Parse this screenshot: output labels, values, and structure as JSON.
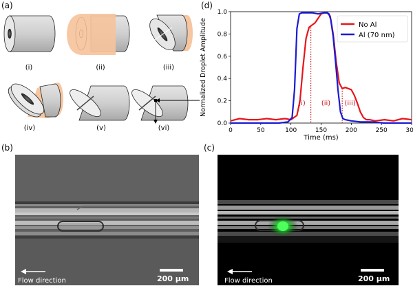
{
  "figure": {
    "panel_a": {
      "label": "(a)",
      "sublabels": [
        "(i)",
        "(ii)",
        "(iii)",
        "(iv)",
        "(v)",
        "(vi)"
      ]
    },
    "panel_b": {
      "label": "(b)",
      "flow_text": "Flow direction",
      "scale_text": "200 μm"
    },
    "panel_c": {
      "label": "(c)",
      "flow_text": "Flow direction",
      "scale_text": "200 μm"
    },
    "panel_d": {
      "label": "(d)"
    }
  },
  "colors": {
    "red": "#e8151b",
    "blue": "#1a1ad6",
    "cone": "#f6c39c",
    "cylinder": "#d6d6d6",
    "green": "#39ff4a"
  },
  "chart_data": {
    "type": "line",
    "xlabel": "Time (ms)",
    "ylabel": "Normalized Droplet Amplitude",
    "xlim": [
      0,
      300
    ],
    "ylim": [
      0,
      1.0
    ],
    "xticks": [
      0,
      50,
      100,
      150,
      200,
      250,
      300
    ],
    "yticks": [
      0.0,
      0.2,
      0.4,
      0.6,
      0.8,
      1.0
    ],
    "grid": false,
    "legend_position": "top-right",
    "series": [
      {
        "name": "No Al",
        "color": "#e8151b",
        "x": [
          0,
          15,
          30,
          45,
          60,
          75,
          90,
          100,
          110,
          115,
          120,
          125,
          130,
          135,
          140,
          145,
          150,
          155,
          160,
          165,
          170,
          175,
          180,
          185,
          190,
          195,
          200,
          205,
          210,
          215,
          220,
          225,
          230,
          240,
          255,
          270,
          285,
          300
        ],
        "y": [
          0.02,
          0.04,
          0.03,
          0.03,
          0.04,
          0.03,
          0.04,
          0.03,
          0.07,
          0.2,
          0.5,
          0.76,
          0.86,
          0.88,
          0.9,
          0.94,
          0.98,
          0.99,
          0.99,
          0.96,
          0.8,
          0.55,
          0.36,
          0.31,
          0.32,
          0.31,
          0.3,
          0.25,
          0.18,
          0.1,
          0.05,
          0.03,
          0.03,
          0.02,
          0.03,
          0.02,
          0.04,
          0.03
        ]
      },
      {
        "name": "Al (70 nm)",
        "color": "#1a1ad6",
        "x": [
          0,
          20,
          40,
          60,
          80,
          95,
          102,
          106,
          110,
          114,
          118,
          125,
          135,
          145,
          155,
          160,
          163,
          166,
          170,
          174,
          178,
          182,
          186,
          190,
          200,
          215,
          235,
          255,
          275,
          300
        ],
        "y": [
          0.0,
          0.0,
          0.0,
          0.0,
          0.0,
          0.01,
          0.05,
          0.3,
          0.85,
          0.98,
          0.99,
          0.99,
          0.99,
          0.98,
          0.99,
          0.99,
          0.98,
          0.93,
          0.78,
          0.55,
          0.3,
          0.1,
          0.04,
          0.03,
          0.02,
          0.01,
          0.01,
          0.0,
          0.0,
          0.0
        ]
      }
    ],
    "annotations": [
      {
        "text": "(i)",
        "x": 118,
        "y": 0.16
      },
      {
        "text": "(ii)",
        "x": 158,
        "y": 0.16
      },
      {
        "text": "(iii)",
        "x": 198,
        "y": 0.16
      }
    ],
    "dotted_lines": [
      {
        "x": 133,
        "y_top": 0.88
      },
      {
        "x": 185,
        "y_top": 0.31
      }
    ]
  }
}
